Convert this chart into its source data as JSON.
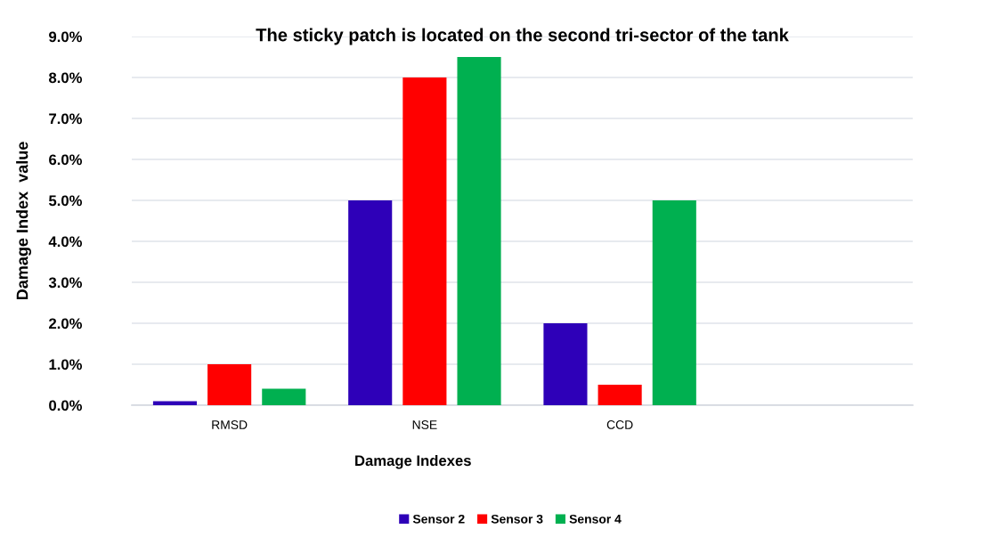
{
  "chart_data": {
    "type": "bar",
    "title": "The sticky patch is located on the second tri-sector of the tank",
    "xlabel": "Damage Indexes",
    "ylabel": "Damage Index  value",
    "categories": [
      "RMSD",
      "NSE",
      "CCD",
      null
    ],
    "series": [
      {
        "name": "Sensor 2",
        "color": "#2e00b8",
        "values": [
          0.1,
          5.0,
          2.0,
          null
        ]
      },
      {
        "name": "Sensor 3",
        "color": "#ff0000",
        "values": [
          1.0,
          8.0,
          0.5,
          null
        ]
      },
      {
        "name": "Sensor 4",
        "color": "#00b050",
        "values": [
          0.4,
          8.5,
          5.0,
          null
        ]
      }
    ],
    "ylim": [
      0,
      9
    ],
    "yticks": [
      {
        "value": 0,
        "label": "0.0%"
      },
      {
        "value": 1,
        "label": "1.0%"
      },
      {
        "value": 2,
        "label": "2.0%"
      },
      {
        "value": 3,
        "label": "3.0%"
      },
      {
        "value": 4,
        "label": "4.0%"
      },
      {
        "value": 5,
        "label": "5.0%"
      },
      {
        "value": 6,
        "label": "6.0%"
      },
      {
        "value": 7,
        "label": "7.0%"
      },
      {
        "value": 8,
        "label": "8.0%"
      },
      {
        "value": 9,
        "label": "9.0%"
      }
    ],
    "grid": "y",
    "legend": "bottom"
  }
}
